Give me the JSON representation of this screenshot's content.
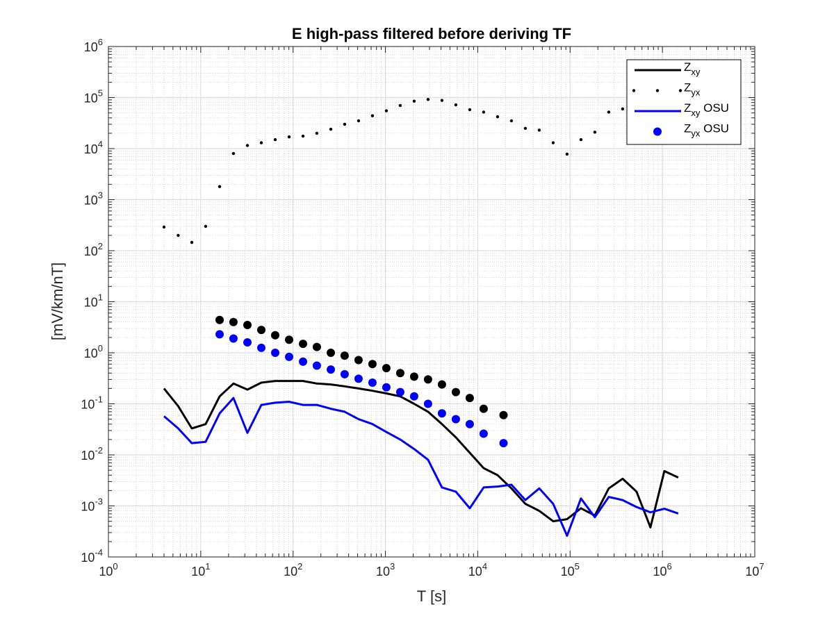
{
  "chart_data": {
    "type": "scatter",
    "title": "E high-pass filtered before deriving TF",
    "xlabel": "T [s]",
    "ylabel": "[mV/km/nT]",
    "xscale": "log",
    "yscale": "log",
    "xlim": [
      1,
      10000000
    ],
    "ylim": [
      0.0001,
      1000000
    ],
    "grid": "major and minor",
    "legend_position": "top-right",
    "x_ticks": [
      {
        "value": 1,
        "base": "10",
        "exp": "0"
      },
      {
        "value": 10,
        "base": "10",
        "exp": "1"
      },
      {
        "value": 100,
        "base": "10",
        "exp": "2"
      },
      {
        "value": 1000,
        "base": "10",
        "exp": "3"
      },
      {
        "value": 10000,
        "base": "10",
        "exp": "4"
      },
      {
        "value": 100000,
        "base": "10",
        "exp": "5"
      },
      {
        "value": 1000000,
        "base": "10",
        "exp": "6"
      },
      {
        "value": 10000000,
        "base": "10",
        "exp": "7"
      }
    ],
    "y_ticks": [
      {
        "value": 0.0001,
        "base": "10",
        "exp": "-4"
      },
      {
        "value": 0.001,
        "base": "10",
        "exp": "-3"
      },
      {
        "value": 0.01,
        "base": "10",
        "exp": "-2"
      },
      {
        "value": 0.1,
        "base": "10",
        "exp": "-1"
      },
      {
        "value": 1,
        "base": "10",
        "exp": "0"
      },
      {
        "value": 10,
        "base": "10",
        "exp": "1"
      },
      {
        "value": 100,
        "base": "10",
        "exp": "2"
      },
      {
        "value": 1000,
        "base": "10",
        "exp": "3"
      },
      {
        "value": 10000,
        "base": "10",
        "exp": "4"
      },
      {
        "value": 100000,
        "base": "10",
        "exp": "5"
      },
      {
        "value": 1000000,
        "base": "10",
        "exp": "6"
      }
    ],
    "series": [
      {
        "name": "Zxy",
        "legend_main": "Z",
        "legend_sub": "xy",
        "legend_suffix": "",
        "style": "line",
        "color": "#000000",
        "x": [
          4,
          5.7,
          8,
          11.3,
          16,
          22.6,
          32,
          45.3,
          64,
          90.5,
          128,
          181,
          256,
          362,
          512,
          724,
          1024,
          1448,
          2048,
          2896,
          4096,
          5793,
          8192,
          11585,
          16384,
          23170,
          32768,
          46341,
          65536,
          92682,
          131072,
          185364,
          262144,
          370728,
          524288,
          741455,
          1048576,
          1482910
        ],
        "y": [
          0.2,
          0.09,
          0.033,
          0.04,
          0.14,
          0.25,
          0.19,
          0.26,
          0.28,
          0.28,
          0.28,
          0.25,
          0.24,
          0.22,
          0.2,
          0.18,
          0.16,
          0.14,
          0.1,
          0.07,
          0.04,
          0.022,
          0.011,
          0.0055,
          0.004,
          0.0022,
          0.0011,
          0.0008,
          0.0005,
          0.00055,
          0.0009,
          0.00065,
          0.0022,
          0.0034,
          0.0019,
          0.00038,
          0.0048,
          0.0036
        ]
      },
      {
        "name": "Zyx",
        "legend_main": "Z",
        "legend_sub": "yx",
        "legend_suffix": "",
        "style": "points-small",
        "color": "#000000",
        "x": [
          4,
          5.7,
          8,
          11.3,
          16,
          22.6,
          32,
          45.3,
          64,
          90.5,
          128,
          181,
          256,
          362,
          512,
          724,
          1024,
          1448,
          2048,
          2896,
          4096,
          5793,
          8192,
          11585,
          16384,
          23170,
          32768,
          46341,
          65536,
          92682,
          131072,
          185364,
          262144,
          370728,
          524288,
          741455
        ],
        "y": [
          290,
          200,
          145,
          300,
          1800,
          8000,
          11500,
          13000,
          15000,
          17000,
          17500,
          20000,
          24000,
          30000,
          35000,
          44000,
          55000,
          70000,
          85000,
          92000,
          88000,
          72000,
          58000,
          52000,
          42000,
          35000,
          25000,
          23000,
          13000,
          7800,
          15000,
          21000,
          52000,
          60000,
          120000,
          450000
        ]
      },
      {
        "name": "Zxy OSU",
        "legend_main": "Z",
        "legend_sub": "xy",
        "legend_suffix": "OSU",
        "style": "line",
        "color": "#0000ff",
        "x": [
          4,
          5.7,
          8,
          11.3,
          16,
          22.6,
          32,
          45.3,
          64,
          90.5,
          128,
          181,
          256,
          362,
          512,
          724,
          1024,
          1448,
          2048,
          2896,
          4096,
          5793,
          8192,
          11585,
          16384,
          23170,
          32768,
          46341,
          65536,
          92682,
          131072,
          185364,
          262144,
          370728,
          524288,
          741455,
          1048576,
          1482910
        ],
        "y": [
          0.057,
          0.033,
          0.017,
          0.018,
          0.065,
          0.13,
          0.027,
          0.095,
          0.105,
          0.11,
          0.095,
          0.095,
          0.08,
          0.07,
          0.05,
          0.04,
          0.028,
          0.02,
          0.013,
          0.008,
          0.0023,
          0.0019,
          0.0009,
          0.0023,
          0.0024,
          0.0026,
          0.0013,
          0.0022,
          0.0011,
          0.00026,
          0.0014,
          0.0006,
          0.0015,
          0.0013,
          0.00095,
          0.00075,
          0.00088,
          0.00071
        ]
      },
      {
        "name": "Zyx OSU",
        "legend_main": "Z",
        "legend_sub": "yx",
        "legend_suffix": "OSU",
        "style": "points-large",
        "color": "#0000ff",
        "x": [
          16,
          22.6,
          32,
          45.3,
          64,
          90.5,
          128,
          181,
          256,
          362,
          512,
          724,
          1024,
          1448,
          2048,
          2896,
          4096,
          5793,
          8192,
          11585,
          19000
        ],
        "y": [
          2.3,
          1.9,
          1.6,
          1.25,
          1.0,
          0.83,
          0.67,
          0.56,
          0.47,
          0.38,
          0.31,
          0.26,
          0.21,
          0.17,
          0.14,
          0.1,
          0.065,
          0.05,
          0.04,
          0.026,
          0.017
        ]
      },
      {
        "name": "Zyx (filtered)",
        "legend_main": "",
        "legend_sub": "",
        "legend_suffix": "",
        "style": "points-large",
        "color": "#000000",
        "show_in_legend": false,
        "x": [
          16,
          22.6,
          32,
          45.3,
          64,
          90.5,
          128,
          181,
          256,
          362,
          512,
          724,
          1024,
          1448,
          2048,
          2896,
          4096,
          5793,
          8192,
          11585,
          19000
        ],
        "y": [
          4.4,
          4.0,
          3.5,
          2.8,
          2.2,
          1.8,
          1.5,
          1.3,
          1.0,
          0.88,
          0.72,
          0.6,
          0.5,
          0.4,
          0.34,
          0.3,
          0.24,
          0.17,
          0.13,
          0.08,
          0.06
        ]
      }
    ]
  }
}
